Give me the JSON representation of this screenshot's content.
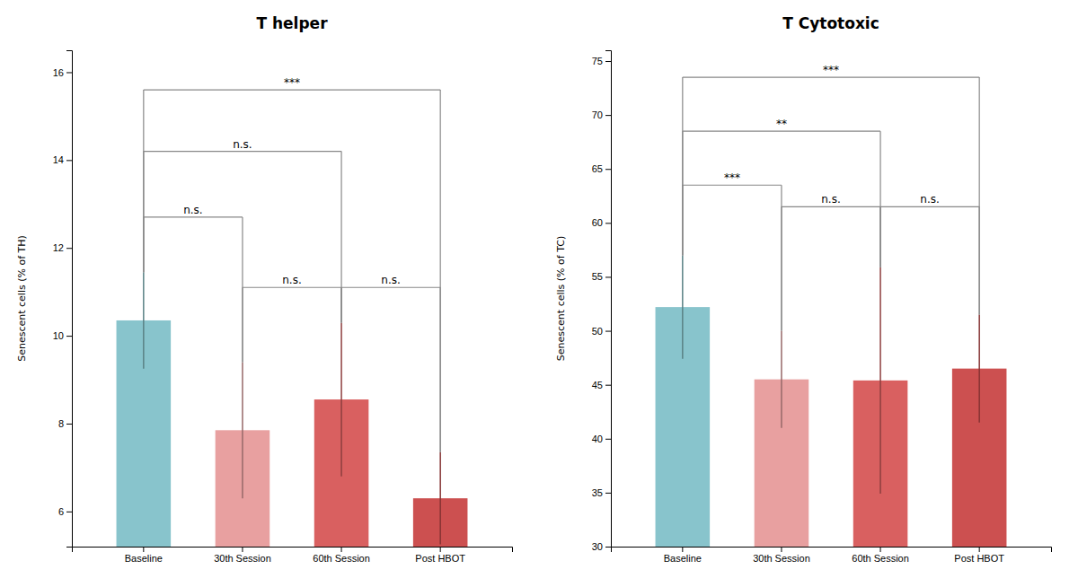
{
  "chart_data": [
    {
      "type": "bar",
      "title": "T helper",
      "ylabel": "Senescent cells (% of TH)",
      "categories": [
        "Baseline",
        "30th Session",
        "60th Session",
        "Post HBOT"
      ],
      "values": [
        10.35,
        7.85,
        8.55,
        6.3
      ],
      "errors_up": [
        1.1,
        1.55,
        1.75,
        1.05
      ],
      "errors_down": [
        1.1,
        1.55,
        1.75,
        1.05
      ],
      "colors": [
        "#88c4cc",
        "#e8a0a0",
        "#d96060",
        "#cc5050"
      ],
      "ylim": [
        5.2,
        16.5
      ],
      "yticks": [
        6,
        8,
        10,
        12,
        14,
        16
      ],
      "grid": false,
      "significance": [
        {
          "x1": "Baseline",
          "x2": "30th Session",
          "y": 12.7,
          "label": "n.s."
        },
        {
          "x1": "Baseline",
          "x2": "60th Session",
          "y": 14.2,
          "label": "n.s."
        },
        {
          "x1": "Baseline",
          "x2": "Post HBOT",
          "y": 15.6,
          "label": "***"
        },
        {
          "x1": "30th Session",
          "x2": "60th Session",
          "y": 11.1,
          "label": "n.s."
        },
        {
          "x1": "60th Session",
          "x2": "Post HBOT",
          "y": 11.1,
          "label": "n.s."
        }
      ]
    },
    {
      "type": "bar",
      "title": "T Cytotoxic",
      "ylabel": "Senescent cells (% of TC)",
      "categories": [
        "Baseline",
        "30th Session",
        "60th Session",
        "Post HBOT"
      ],
      "values": [
        52.2,
        45.5,
        45.4,
        46.5
      ],
      "errors_up": [
        4.8,
        4.5,
        10.5,
        5.0
      ],
      "errors_down": [
        4.8,
        4.5,
        10.5,
        5.0
      ],
      "colors": [
        "#88c4cc",
        "#e8a0a0",
        "#d96060",
        "#cc5050"
      ],
      "ylim": [
        30,
        76
      ],
      "yticks": [
        30,
        35,
        40,
        45,
        50,
        55,
        60,
        65,
        70,
        75
      ],
      "grid": false,
      "significance": [
        {
          "x1": "Baseline",
          "x2": "30th Session",
          "y": 63.5,
          "label": "***"
        },
        {
          "x1": "Baseline",
          "x2": "60th Session",
          "y": 68.5,
          "label": "**"
        },
        {
          "x1": "Baseline",
          "x2": "Post HBOT",
          "y": 73.5,
          "label": "***"
        },
        {
          "x1": "30th Session",
          "x2": "60th Session",
          "y": 61.5,
          "label": "n.s."
        },
        {
          "x1": "60th Session",
          "x2": "Post HBOT",
          "y": 61.5,
          "label": "n.s."
        }
      ]
    }
  ]
}
